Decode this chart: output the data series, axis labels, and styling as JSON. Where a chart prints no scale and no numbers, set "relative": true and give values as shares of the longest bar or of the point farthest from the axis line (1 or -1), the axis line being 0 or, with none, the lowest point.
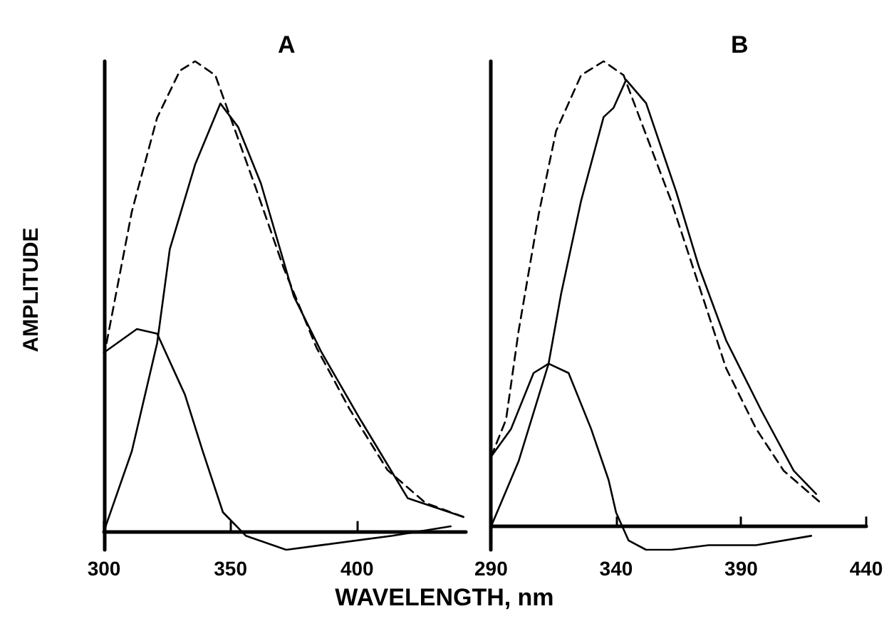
{
  "chart_data": [
    {
      "type": "line",
      "title": "A",
      "xlabel": "WAVELENGTH, nm",
      "ylabel": "AMPLITUDE",
      "relative": true,
      "xlim": [
        300,
        443
      ],
      "xticks": [
        300,
        350,
        400
      ],
      "tick_labels": "x",
      "marker": "none",
      "series": [
        {
          "color": "#000000",
          "line_style": "dashed",
          "x": [
            301,
            311,
            321,
            330,
            336,
            344,
            350,
            360,
            371,
            384,
            397,
            412,
            427,
            442
          ],
          "values": [
            0.4,
            0.68,
            0.88,
            0.98,
            1.0,
            0.97,
            0.88,
            0.73,
            0.56,
            0.39,
            0.26,
            0.13,
            0.06,
            0.03
          ]
        },
        {
          "color": "#000000",
          "line_style": "solid",
          "x": [
            300,
            311,
            321,
            326,
            336,
            346,
            353,
            362,
            375,
            386,
            401,
            420,
            442
          ],
          "values": [
            0,
            0.17,
            0.4,
            0.6,
            0.78,
            0.91,
            0.86,
            0.74,
            0.5,
            0.38,
            0.24,
            0.07,
            0.03
          ]
        },
        {
          "color": "#000000",
          "line_style": "solid",
          "x": [
            300,
            313,
            321,
            332,
            339,
            347,
            356,
            372,
            386,
            414,
            437
          ],
          "values": [
            0.38,
            0.43,
            0.42,
            0.29,
            0.17,
            0.04,
            -0.01,
            -0.04,
            -0.03,
            -0.01,
            0.01
          ]
        }
      ]
    },
    {
      "type": "line",
      "title": "B",
      "relative": true,
      "xlim": [
        290,
        440
      ],
      "xticks": [
        290,
        340,
        390,
        440
      ],
      "tick_labels": "x",
      "marker": "none",
      "series": [
        {
          "color": "#000000",
          "line_style": "dashed",
          "x": [
            290,
            296,
            301,
            309,
            316,
            326,
            335,
            343,
            350,
            362,
            373,
            384,
            396,
            407,
            422
          ],
          "values": [
            0.15,
            0.23,
            0.42,
            0.67,
            0.85,
            0.97,
            1.0,
            0.97,
            0.87,
            0.7,
            0.52,
            0.34,
            0.21,
            0.12,
            0.05
          ]
        },
        {
          "color": "#000000",
          "line_style": "solid",
          "x": [
            290,
            301,
            313,
            318,
            326,
            335,
            339,
            344,
            352,
            364,
            373,
            384,
            398,
            411,
            420
          ],
          "values": [
            0,
            0.14,
            0.35,
            0.5,
            0.7,
            0.88,
            0.9,
            0.96,
            0.91,
            0.72,
            0.56,
            0.4,
            0.25,
            0.12,
            0.07
          ]
        },
        {
          "color": "#000000",
          "line_style": "solid",
          "x": [
            290,
            298,
            307,
            313,
            321,
            330,
            337,
            340,
            345,
            352,
            362,
            377,
            396,
            418
          ],
          "values": [
            0.15,
            0.21,
            0.33,
            0.35,
            0.33,
            0.21,
            0.1,
            0.03,
            -0.03,
            -0.05,
            -0.05,
            -0.04,
            -0.04,
            -0.02
          ]
        }
      ]
    }
  ]
}
